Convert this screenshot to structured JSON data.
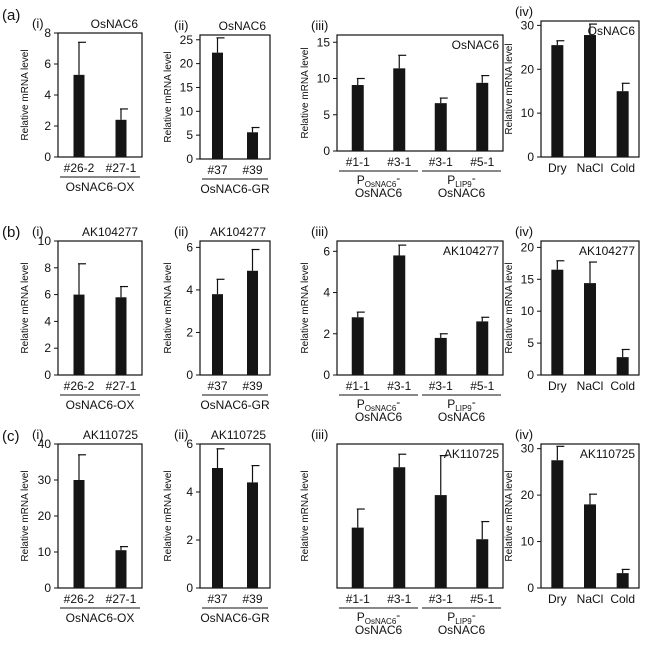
{
  "rows": [
    {
      "letter": "(a)",
      "panels": [
        {
          "roman": "(i)",
          "gene": "OsNAC6",
          "ylabel": "Relative mRNA level",
          "ylim": [
            0,
            8
          ],
          "yticks": [
            0,
            2,
            4,
            6,
            8
          ],
          "categories": [
            "#26-2",
            "#27-1"
          ],
          "values": [
            5.3,
            2.4
          ],
          "errors": [
            2.1,
            0.7
          ],
          "groups": [
            {
              "label": "OsNAC6-OX",
              "from": 0,
              "to": 1
            }
          ]
        },
        {
          "roman": "(ii)",
          "gene": "OsNAC6",
          "ylabel": "Relative mRNA level",
          "ylim": [
            0,
            26
          ],
          "yticks": [
            0,
            5,
            10,
            15,
            20,
            25
          ],
          "categories": [
            "#37",
            "#39"
          ],
          "values": [
            22.3,
            5.6
          ],
          "errors": [
            3.1,
            1.0
          ],
          "groups": [
            {
              "label": "OsNAC6-GR",
              "from": 0,
              "to": 1
            }
          ]
        },
        {
          "roman": "(iii)",
          "gene": "OsNAC6",
          "ylabel": "Relative mRNA level",
          "ylim": [
            0,
            16
          ],
          "yticks": [
            0,
            5,
            10,
            15
          ],
          "categories": [
            "#1-1",
            "#3-1",
            "#3-1",
            "#5-1"
          ],
          "values": [
            9.1,
            11.4,
            6.6,
            9.4
          ],
          "errors": [
            0.9,
            1.8,
            0.7,
            1.0
          ],
          "groups": [
            {
              "label_main": "P",
              "label_sub": "OsNAC6",
              "label_tail": "-",
              "line2": "OsNAC6",
              "from": 0,
              "to": 1
            },
            {
              "label_main": "P",
              "label_sub": "LIP9",
              "label_tail": "-",
              "line2": "OsNAC6",
              "from": 2,
              "to": 3
            }
          ]
        },
        {
          "roman": "(iv)",
          "gene": "OsNAC6",
          "ylabel": "Relative mRNA level",
          "ylim": [
            0,
            31
          ],
          "yticks": [
            0,
            10,
            20,
            30
          ],
          "categories": [
            "Dry",
            "NaCl",
            "Cold"
          ],
          "values": [
            25.5,
            27.8,
            15.0
          ],
          "errors": [
            1.0,
            2.5,
            1.8
          ],
          "groups": []
        }
      ]
    },
    {
      "letter": "(b)",
      "panels": [
        {
          "roman": "(i)",
          "gene": "AK104277",
          "ylabel": "Relative mRNA level",
          "ylim": [
            0,
            10
          ],
          "yticks": [
            0,
            2,
            4,
            6,
            8,
            10
          ],
          "categories": [
            "#26-2",
            "#27-1"
          ],
          "values": [
            6.0,
            5.8
          ],
          "errors": [
            2.3,
            0.8
          ],
          "groups": [
            {
              "label": "OsNAC6-OX",
              "from": 0,
              "to": 1
            }
          ]
        },
        {
          "roman": "(ii)",
          "gene": "AK104277",
          "ylabel": "Relative mRNA level",
          "ylim": [
            0,
            6.3
          ],
          "yticks": [
            0,
            2,
            4,
            6
          ],
          "categories": [
            "#37",
            "#39"
          ],
          "values": [
            3.8,
            4.9
          ],
          "errors": [
            0.7,
            1.0
          ],
          "groups": [
            {
              "label": "OsNAC6-GR",
              "from": 0,
              "to": 1
            }
          ]
        },
        {
          "roman": "(iii)",
          "gene": "AK104277",
          "ylabel": "Relative mRNA level",
          "ylim": [
            0,
            6.5
          ],
          "yticks": [
            0,
            2,
            4,
            6
          ],
          "categories": [
            "#1-1",
            "#3-1",
            "#3-1",
            "#5-1"
          ],
          "values": [
            2.8,
            5.8,
            1.8,
            2.6
          ],
          "errors": [
            0.25,
            0.5,
            0.2,
            0.2
          ],
          "groups": [
            {
              "label_main": "P",
              "label_sub": "OsNAC6",
              "label_tail": "-",
              "line2": "OsNAC6",
              "from": 0,
              "to": 1
            },
            {
              "label_main": "P",
              "label_sub": "LIP9",
              "label_tail": "-",
              "line2": "OsNAC6",
              "from": 2,
              "to": 3
            }
          ]
        },
        {
          "roman": "(iv)",
          "gene": "AK104277",
          "ylabel": "Relative mRNA level",
          "ylim": [
            0,
            21
          ],
          "yticks": [
            0,
            5,
            10,
            15,
            20
          ],
          "categories": [
            "Dry",
            "NaCl",
            "Cold"
          ],
          "values": [
            16.5,
            14.4,
            2.8
          ],
          "errors": [
            1.4,
            3.3,
            1.2
          ],
          "groups": []
        }
      ]
    },
    {
      "letter": "(c)",
      "panels": [
        {
          "roman": "(i)",
          "gene": "AK110725",
          "ylabel": "Relative mRNA level",
          "ylim": [
            0,
            40
          ],
          "yticks": [
            0,
            10,
            20,
            30,
            40
          ],
          "categories": [
            "#26-2",
            "#27-1"
          ],
          "values": [
            30.0,
            10.5
          ],
          "errors": [
            7.0,
            1.0
          ],
          "groups": [
            {
              "label": "OsNAC6-OX",
              "from": 0,
              "to": 1
            }
          ]
        },
        {
          "roman": "(ii)",
          "gene": "AK110725",
          "ylabel": "Relative mRNA level",
          "ylim": [
            0,
            6
          ],
          "yticks": [
            0,
            2,
            4,
            6
          ],
          "categories": [
            "#37",
            "#39"
          ],
          "values": [
            5.0,
            4.4
          ],
          "errors": [
            0.8,
            0.7
          ],
          "groups": [
            {
              "label": "OsNAC6-GR",
              "from": 0,
              "to": 1
            }
          ]
        },
        {
          "roman": "(iii)",
          "gene": "AK110725",
          "ylabel": "Relative mRNA level",
          "ylim": [
            0,
            3.1
          ],
          "yticks": [],
          "categories": [
            "#1-1",
            "#3-1",
            "#3-1",
            "#5-1"
          ],
          "values": [
            1.3,
            2.6,
            2.0,
            1.05
          ],
          "errors": [
            0.4,
            0.28,
            0.85,
            0.38
          ],
          "groups": [
            {
              "label_main": "P",
              "label_sub": "OsNAC6",
              "label_tail": "-",
              "line2": "OsNAC6",
              "from": 0,
              "to": 1
            },
            {
              "label_main": "P",
              "label_sub": "LIP9",
              "label_tail": "-",
              "line2": "OsNAC6",
              "from": 2,
              "to": 3
            }
          ]
        },
        {
          "roman": "(iv)",
          "gene": "AK110725",
          "ylabel": "Relative mRNA level",
          "ylim": [
            0,
            31
          ],
          "yticks": [
            0,
            10,
            20,
            30
          ],
          "categories": [
            "Dry",
            "NaCl",
            "Cold"
          ],
          "values": [
            27.5,
            18.0,
            3.2
          ],
          "errors": [
            3.0,
            2.2,
            0.8
          ],
          "groups": []
        }
      ]
    }
  ],
  "chart_data": [
    {
      "type": "bar",
      "title": "(a)(i) OsNAC6",
      "ylabel": "Relative mRNA level",
      "ylim": [
        0,
        8
      ],
      "categories": [
        "#26-2",
        "#27-1"
      ],
      "values": [
        5.3,
        2.4
      ],
      "group_label": "OsNAC6-OX"
    },
    {
      "type": "bar",
      "title": "(a)(ii) OsNAC6",
      "ylabel": "Relative mRNA level",
      "ylim": [
        0,
        26
      ],
      "categories": [
        "#37",
        "#39"
      ],
      "values": [
        22.3,
        5.6
      ],
      "group_label": "OsNAC6-GR"
    },
    {
      "type": "bar",
      "title": "(a)(iii) OsNAC6",
      "ylabel": "Relative mRNA level",
      "ylim": [
        0,
        16
      ],
      "categories": [
        "#1-1",
        "#3-1",
        "#3-1",
        "#5-1"
      ],
      "values": [
        9.1,
        11.4,
        6.6,
        9.4
      ]
    },
    {
      "type": "bar",
      "title": "(a)(iv) OsNAC6",
      "ylabel": "Relative mRNA level",
      "ylim": [
        0,
        31
      ],
      "categories": [
        "Dry",
        "NaCl",
        "Cold"
      ],
      "values": [
        25.5,
        27.8,
        15.0
      ]
    },
    {
      "type": "bar",
      "title": "(b)(i) AK104277",
      "ylabel": "Relative mRNA level",
      "ylim": [
        0,
        10
      ],
      "categories": [
        "#26-2",
        "#27-1"
      ],
      "values": [
        6.0,
        5.8
      ],
      "group_label": "OsNAC6-OX"
    },
    {
      "type": "bar",
      "title": "(b)(ii) AK104277",
      "ylabel": "Relative mRNA level",
      "ylim": [
        0,
        6.3
      ],
      "categories": [
        "#37",
        "#39"
      ],
      "values": [
        3.8,
        4.9
      ],
      "group_label": "OsNAC6-GR"
    },
    {
      "type": "bar",
      "title": "(b)(iii) AK104277",
      "ylabel": "Relative mRNA level",
      "ylim": [
        0,
        6.5
      ],
      "categories": [
        "#1-1",
        "#3-1",
        "#3-1",
        "#5-1"
      ],
      "values": [
        2.8,
        5.8,
        1.8,
        2.6
      ]
    },
    {
      "type": "bar",
      "title": "(b)(iv) AK104277",
      "ylabel": "Relative mRNA level",
      "ylim": [
        0,
        21
      ],
      "categories": [
        "Dry",
        "NaCl",
        "Cold"
      ],
      "values": [
        16.5,
        14.4,
        2.8
      ]
    },
    {
      "type": "bar",
      "title": "(c)(i) AK110725",
      "ylabel": "Relative mRNA level",
      "ylim": [
        0,
        40
      ],
      "categories": [
        "#26-2",
        "#27-1"
      ],
      "values": [
        30.0,
        10.5
      ],
      "group_label": "OsNAC6-OX"
    },
    {
      "type": "bar",
      "title": "(c)(ii) AK110725",
      "ylabel": "Relative mRNA level",
      "ylim": [
        0,
        6
      ],
      "categories": [
        "#37",
        "#39"
      ],
      "values": [
        5.0,
        4.4
      ],
      "group_label": "OsNAC6-GR"
    },
    {
      "type": "bar",
      "title": "(c)(iii) AK110725",
      "ylabel": "Relative mRNA level",
      "ylim": [
        0,
        3.1
      ],
      "categories": [
        "#1-1",
        "#3-1",
        "#3-1",
        "#5-1"
      ],
      "values": [
        1.3,
        2.6,
        2.0,
        1.05
      ]
    },
    {
      "type": "bar",
      "title": "(c)(iv) AK110725",
      "ylabel": "Relative mRNA level",
      "ylim": [
        0,
        31
      ],
      "categories": [
        "Dry",
        "NaCl",
        "Cold"
      ],
      "values": [
        27.5,
        18.0,
        3.2
      ]
    }
  ]
}
